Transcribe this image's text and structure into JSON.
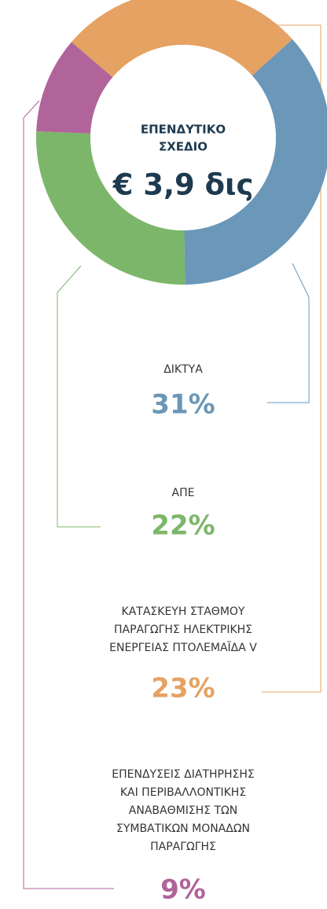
{
  "chart_data": {
    "type": "donut",
    "center_title": [
      "ΕΠΕΝΔΥΤΙΚΟ",
      "ΣΧΕΔΙΟ"
    ],
    "center_value": "€ 3,9 δις",
    "categories": [
      [
        "ΔΙΚΤΥΑ"
      ],
      [
        "ΑΠΕ"
      ],
      [
        "ΚΑΤΑΣΚΕΥΗ ΣΤΑΘΜΟΥ",
        "ΠΑΡΑΓΩΓΗΣ ΗΛΕΚΤΡΙΚΗΣ",
        "ΕΝΕΡΓΕΙΑΣ ΠΤΟΛΕΜΑΪΔΑ V"
      ],
      [
        "ΕΠΕΝΔΥΣΕΙΣ ΔΙΑΤΗΡΗΣΗΣ",
        "ΚΑΙ ΠΕΡΙΒΑΛΛΟΝΤΙΚΗΣ",
        "ΑΝΑΒΑΘΜΙΣΗΣ ΤΩΝ",
        "ΣΥΜΒΑΤΙΚΩΝ ΜΟΝΑΔΩΝ",
        "ΠΑΡΑΓΩΓΗΣ"
      ]
    ],
    "values": [
      31,
      22,
      23,
      9
    ],
    "value_labels": [
      "31%",
      "22%",
      "23%",
      "9%"
    ],
    "colors": [
      "#6b97b8",
      "#7cb66a",
      "#e5a263",
      "#b0649a"
    ]
  }
}
